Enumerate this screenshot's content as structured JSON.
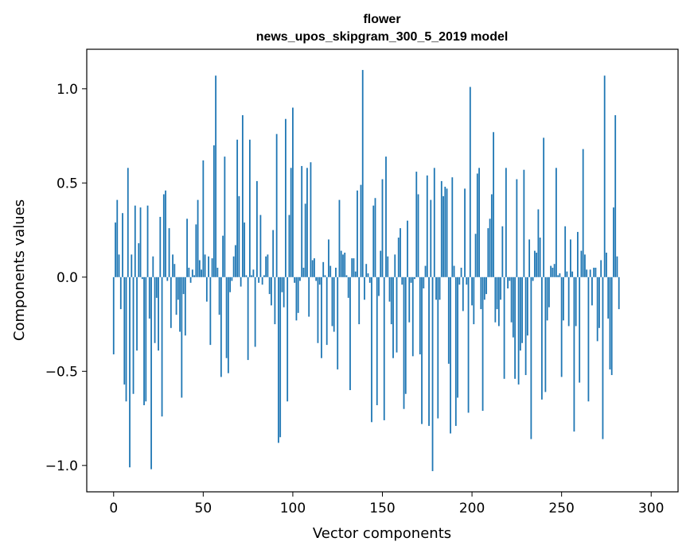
{
  "chart_data": {
    "type": "bar",
    "title_lines": [
      "flower",
      "news_upos_skipgram_300_5_2019 model"
    ],
    "xlabel": "Vector components",
    "ylabel": "Components values",
    "xlim": [
      -15,
      315
    ],
    "ylim": [
      -1.14,
      1.21
    ],
    "xticks": [
      0,
      50,
      100,
      150,
      200,
      250,
      300
    ],
    "yticks": [
      -1.0,
      -0.5,
      0.0,
      0.5,
      1.0
    ],
    "ytick_labels": [
      "−1.0",
      "−0.5",
      "0.0",
      "0.5",
      "1.0"
    ],
    "grid": false,
    "bar_color": "#1f77b4",
    "values": [
      -0.41,
      0.29,
      0.41,
      0.12,
      -0.17,
      0.34,
      -0.57,
      -0.66,
      0.58,
      -1.01,
      0.12,
      -0.62,
      0.38,
      -0.39,
      0.18,
      0.37,
      -0.01,
      -0.68,
      -0.66,
      0.38,
      -0.22,
      -1.02,
      0.11,
      -0.35,
      -0.11,
      -0.39,
      0.32,
      -0.74,
      0.44,
      0.46,
      -0.02,
      0.26,
      -0.27,
      0.12,
      0.07,
      -0.2,
      -0.12,
      -0.29,
      -0.64,
      -0.09,
      -0.31,
      0.31,
      0.05,
      -0.03,
      0.04,
      0.01,
      0.28,
      0.41,
      0.09,
      0.04,
      0.62,
      0.12,
      -0.13,
      0.11,
      -0.36,
      0.1,
      0.7,
      1.07,
      0.05,
      -0.2,
      -0.53,
      0.22,
      0.64,
      -0.43,
      -0.51,
      -0.08,
      -0.02,
      0.11,
      0.17,
      0.73,
      0.43,
      -0.05,
      0.86,
      0.29,
      0.01,
      -0.44,
      0.73,
      0.01,
      0.04,
      -0.37,
      0.51,
      -0.03,
      0.33,
      -0.04,
      0.01,
      0.11,
      0.12,
      -0.09,
      -0.15,
      0.25,
      -0.25,
      0.76,
      -0.88,
      -0.85,
      -0.08,
      -0.16,
      0.84,
      -0.66,
      0.33,
      0.58,
      0.9,
      -0.03,
      -0.23,
      -0.19,
      -0.02,
      0.59,
      0.05,
      0.39,
      0.58,
      -0.21,
      0.61,
      0.09,
      0.1,
      -0.02,
      -0.35,
      -0.04,
      -0.43,
      0.08,
      0.01,
      -0.36,
      0.2,
      0.06,
      -0.26,
      -0.29,
      0.05,
      -0.49,
      0.41,
      0.14,
      0.12,
      0.13,
      0.01,
      -0.11,
      -0.6,
      0.1,
      0.1,
      0.03,
      0.46,
      -0.25,
      0.49,
      1.1,
      -0.12,
      0.07,
      0.02,
      -0.03,
      -0.77,
      0.38,
      0.42,
      -0.68,
      -0.1,
      0.14,
      0.52,
      -0.76,
      0.64,
      0.11,
      -0.13,
      -0.25,
      -0.43,
      0.12,
      -0.4,
      0.21,
      0.26,
      -0.04,
      -0.7,
      -0.62,
      0.3,
      -0.24,
      -0.03,
      -0.42,
      -0.01,
      0.56,
      0.44,
      -0.41,
      -0.78,
      -0.06,
      0.06,
      0.54,
      -0.79,
      0.41,
      -1.03,
      0.58,
      -0.12,
      -0.75,
      -0.12,
      0.51,
      0.43,
      0.48,
      0.47,
      -0.46,
      -0.83,
      0.53,
      0.06,
      -0.79,
      -0.64,
      -0.04,
      0.05,
      -0.18,
      0.47,
      -0.04,
      -0.72,
      1.01,
      -0.15,
      -0.25,
      0.23,
      0.55,
      0.58,
      -0.17,
      -0.71,
      -0.12,
      -0.09,
      0.26,
      0.31,
      0.44,
      0.77,
      -0.24,
      -0.17,
      -0.26,
      -0.12,
      0.27,
      -0.54,
      0.58,
      -0.06,
      -0.02,
      -0.24,
      -0.32,
      -0.54,
      0.52,
      -0.57,
      -0.39,
      -0.35,
      0.57,
      -0.52,
      -0.31,
      0.2,
      -0.86,
      -0.02,
      0.14,
      0.13,
      0.36,
      0.21,
      -0.65,
      0.74,
      -0.61,
      -0.23,
      -0.16,
      0.06,
      0.05,
      0.07,
      0.58,
      0.01,
      0.02,
      -0.53,
      -0.23,
      0.27,
      0.03,
      -0.26,
      0.2,
      0.03,
      -0.82,
      -0.26,
      0.24,
      -0.56,
      0.14,
      0.68,
      0.12,
      0.04,
      -0.66,
      0.04,
      -0.15,
      0.05,
      0.05,
      -0.34,
      -0.27,
      0.09,
      -0.86,
      1.07,
      0.13,
      -0.22,
      -0.49,
      -0.52,
      0.37,
      0.86,
      0.11,
      -0.17
    ]
  }
}
